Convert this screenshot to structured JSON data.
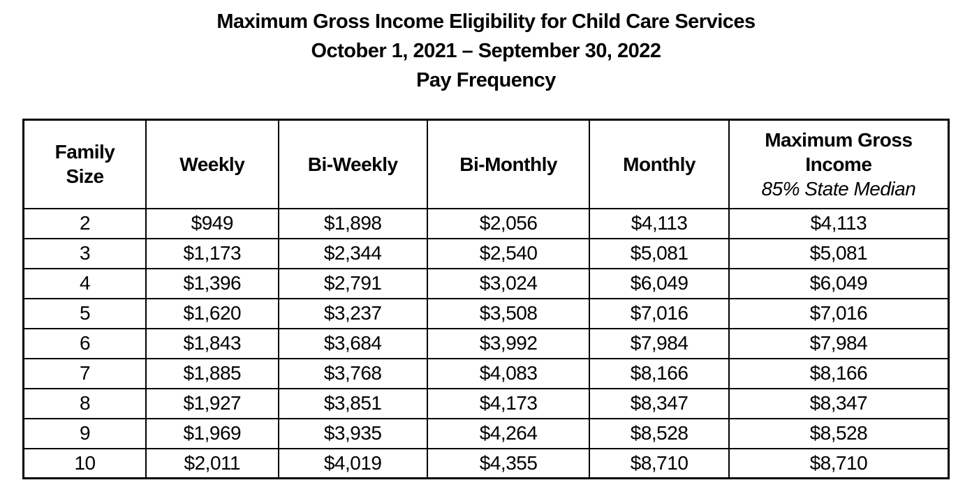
{
  "document": {
    "title_lines": [
      "Maximum Gross Income Eligibility for Child Care Services",
      "October 1, 2021 – September 30, 2022",
      "Pay Frequency"
    ]
  },
  "table": {
    "headers": [
      {
        "label": "Family\nSize"
      },
      {
        "label": "Weekly"
      },
      {
        "label": "Bi-Weekly"
      },
      {
        "label": "Bi-Monthly"
      },
      {
        "label": "Monthly"
      },
      {
        "label": "Maximum Gross\nIncome",
        "sublabel": "85% State Median"
      }
    ],
    "column_widths_pct": [
      13.25,
      14.3,
      16.1,
      17.55,
      15.05,
      23.75
    ],
    "rows": [
      [
        "2",
        "$949",
        "$1,898",
        "$2,056",
        "$4,113",
        "$4,113"
      ],
      [
        "3",
        "$1,173",
        "$2,344",
        "$2,540",
        "$5,081",
        "$5,081"
      ],
      [
        "4",
        "$1,396",
        "$2,791",
        "$3,024",
        "$6,049",
        "$6,049"
      ],
      [
        "5",
        "$1,620",
        "$3,237",
        "$3,508",
        "$7,016",
        "$7,016"
      ],
      [
        "6",
        "$1,843",
        "$3,684",
        "$3,992",
        "$7,984",
        "$7,984"
      ],
      [
        "7",
        "$1,885",
        "$3,768",
        "$4,083",
        "$8,166",
        "$8,166"
      ],
      [
        "8",
        "$1,927",
        "$3,851",
        "$4,173",
        "$8,347",
        "$8,347"
      ],
      [
        "9",
        "$1,969",
        "$3,935",
        "$4,264",
        "$8,528",
        "$8,528"
      ],
      [
        "10",
        "$2,011",
        "$4,019",
        "$4,355",
        "$8,710",
        "$8,710"
      ]
    ]
  },
  "colors": {
    "text": "#000000",
    "background": "#ffffff",
    "border": "#000000"
  }
}
